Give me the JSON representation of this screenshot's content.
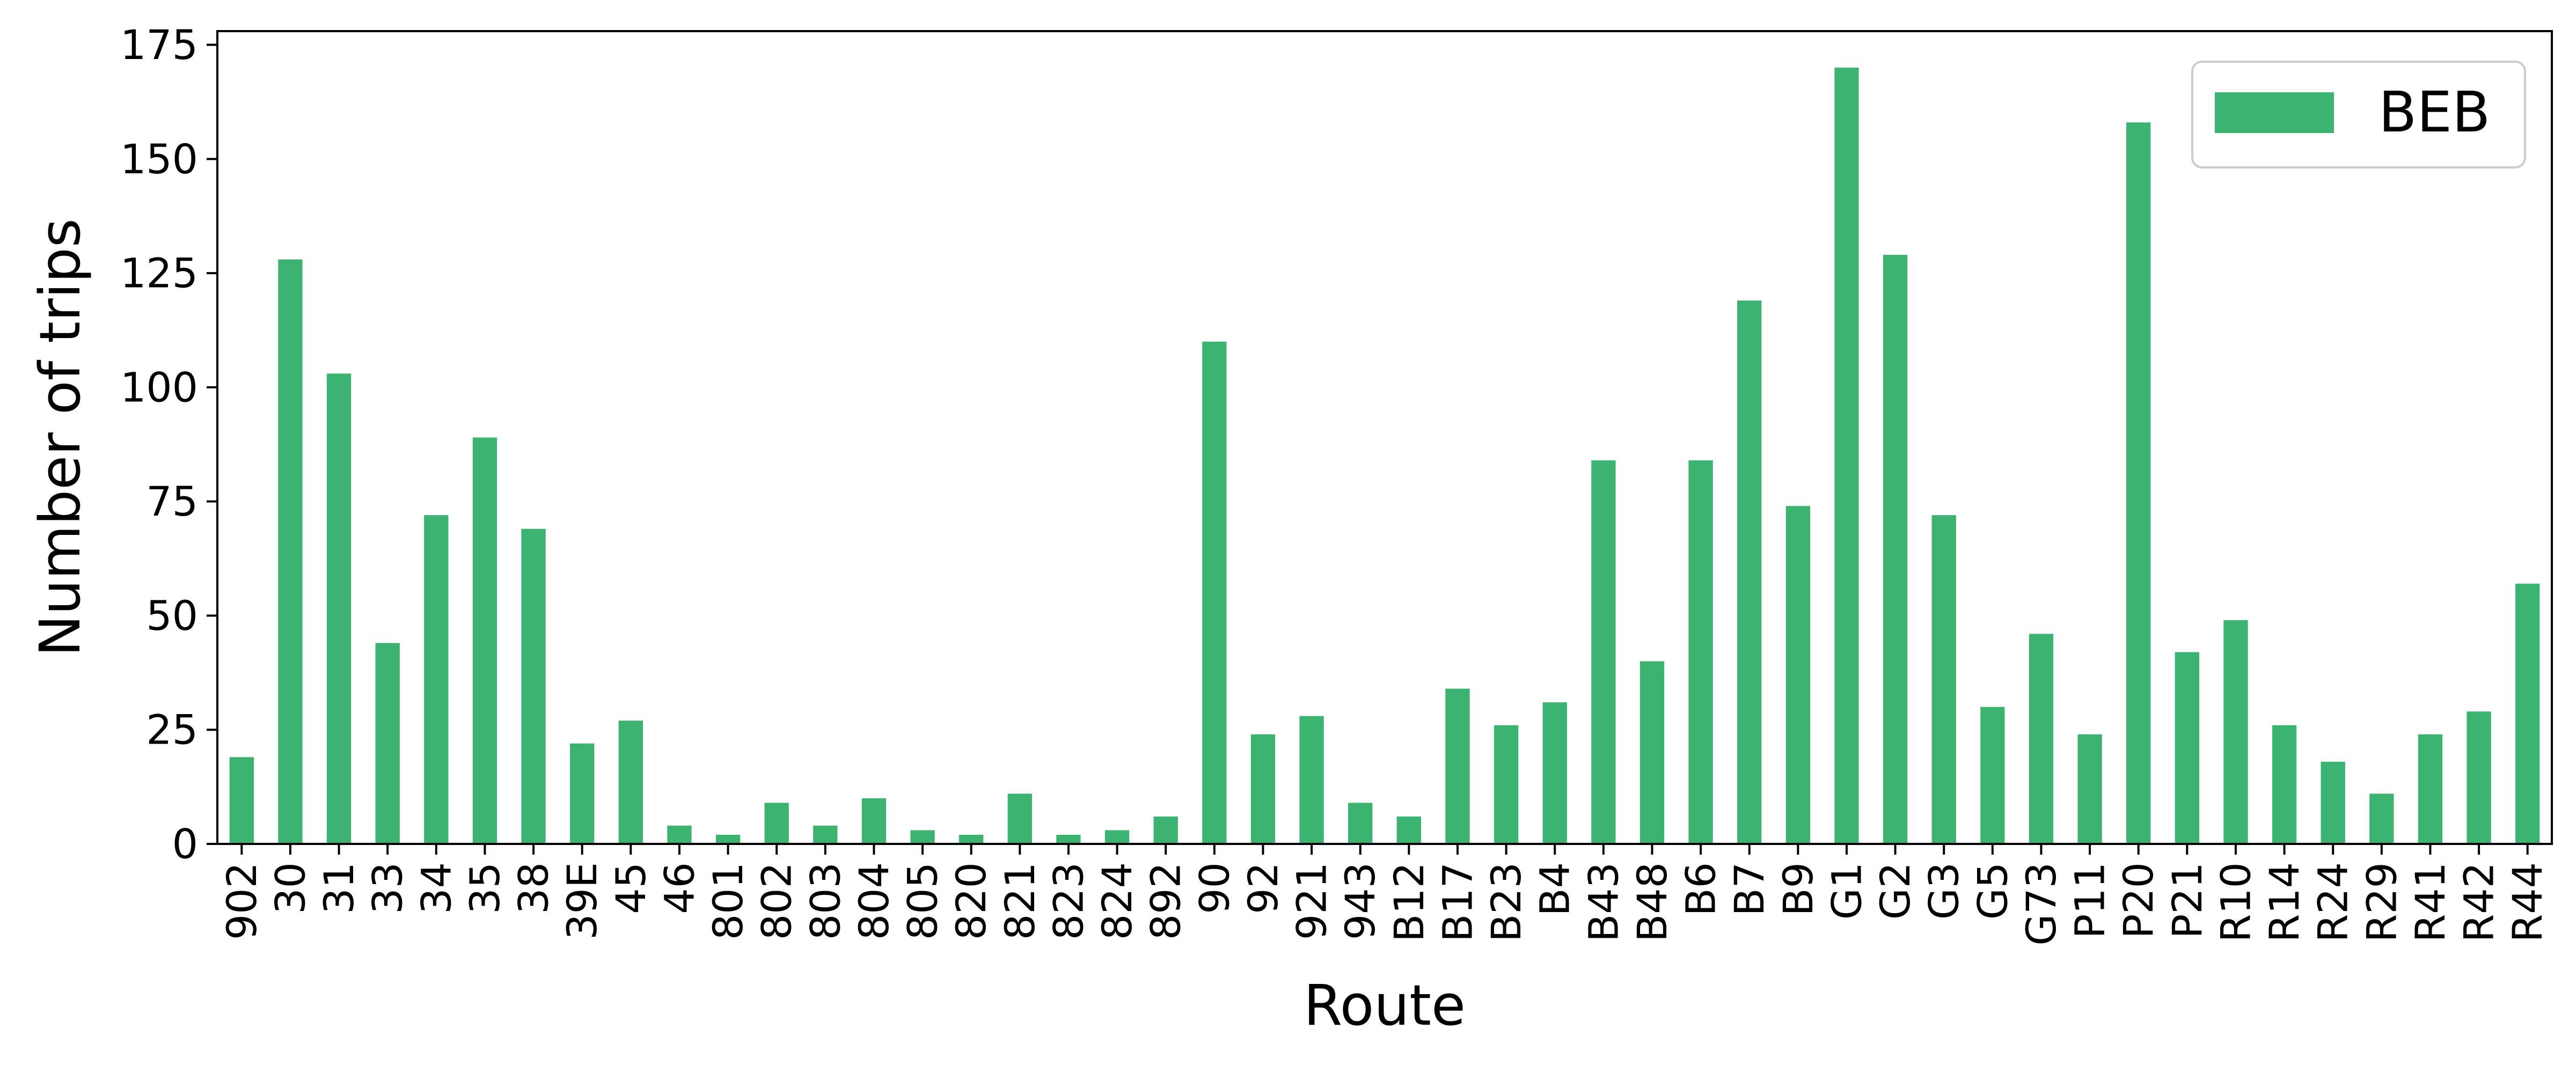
{
  "chart_data": {
    "type": "bar",
    "xlabel": "Route",
    "ylabel": "Number of trips",
    "ylim": [
      0,
      178
    ],
    "yticks": [
      0,
      25,
      50,
      75,
      100,
      125,
      150,
      175
    ],
    "grid": false,
    "legend_position": "top-right",
    "categories": [
      "902",
      "30",
      "31",
      "33",
      "34",
      "35",
      "38",
      "39E",
      "45",
      "46",
      "801",
      "802",
      "803",
      "804",
      "805",
      "820",
      "821",
      "823",
      "824",
      "892",
      "90",
      "92",
      "921",
      "943",
      "B12",
      "B17",
      "B23",
      "B4",
      "B43",
      "B48",
      "B6",
      "B7",
      "B9",
      "G1",
      "G2",
      "G3",
      "G5",
      "G73",
      "P11",
      "P20",
      "P21",
      "R10",
      "R14",
      "R24",
      "R29",
      "R41",
      "R42",
      "R44"
    ],
    "series": [
      {
        "name": "BEB",
        "color": "#3cb371",
        "values": [
          19,
          128,
          103,
          44,
          72,
          89,
          69,
          22,
          27,
          4,
          2,
          9,
          4,
          10,
          3,
          2,
          11,
          2,
          3,
          6,
          110,
          24,
          28,
          9,
          6,
          34,
          26,
          31,
          84,
          40,
          84,
          119,
          74,
          170,
          129,
          72,
          30,
          46,
          24,
          158,
          42,
          49,
          26,
          18,
          11,
          24,
          29,
          57
        ]
      }
    ]
  }
}
